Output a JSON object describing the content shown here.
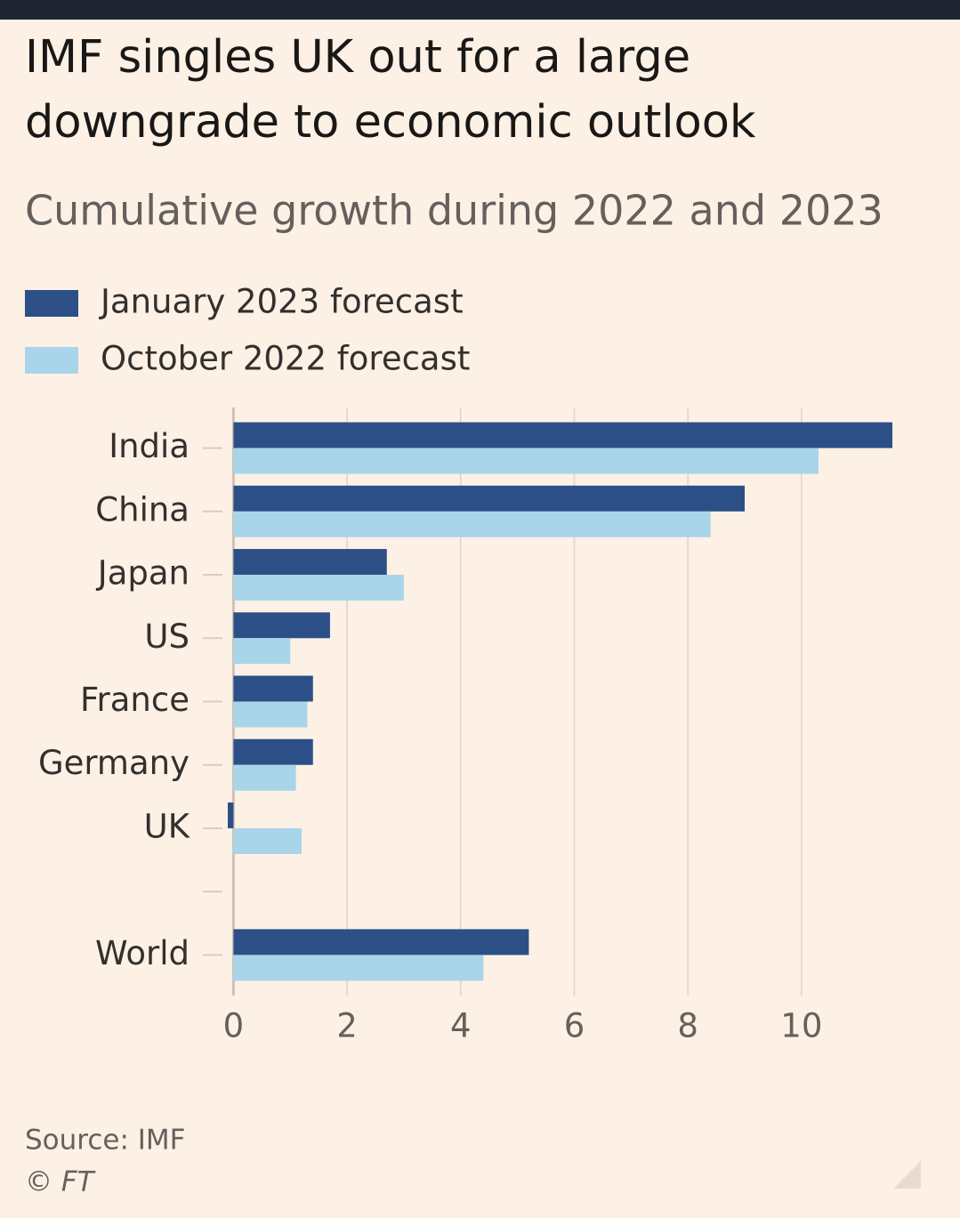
{
  "chart_data": {
    "type": "hbar",
    "title": "IMF singles UK out for a large downgrade to economic outlook",
    "subtitle": "Cumulative growth during 2022 and 2023",
    "categories": [
      "India",
      "China",
      "Japan",
      "US",
      "France",
      "Germany",
      "UK",
      null,
      "World"
    ],
    "series": [
      {
        "name": "January 2023 forecast",
        "color": "#2c4f87",
        "values": [
          11.6,
          9.0,
          2.7,
          1.7,
          1.4,
          1.4,
          -0.1,
          null,
          5.2
        ]
      },
      {
        "name": "October 2022 forecast",
        "color": "#a9d5ea",
        "values": [
          10.3,
          8.4,
          3.0,
          1.0,
          1.3,
          1.1,
          1.2,
          null,
          4.4
        ]
      }
    ],
    "xlim": [
      -0.1,
      11.6
    ],
    "xticks": [
      0,
      2,
      4,
      6,
      8,
      10
    ],
    "grid": true,
    "source": "Source: IMF",
    "credit": "© FT"
  }
}
